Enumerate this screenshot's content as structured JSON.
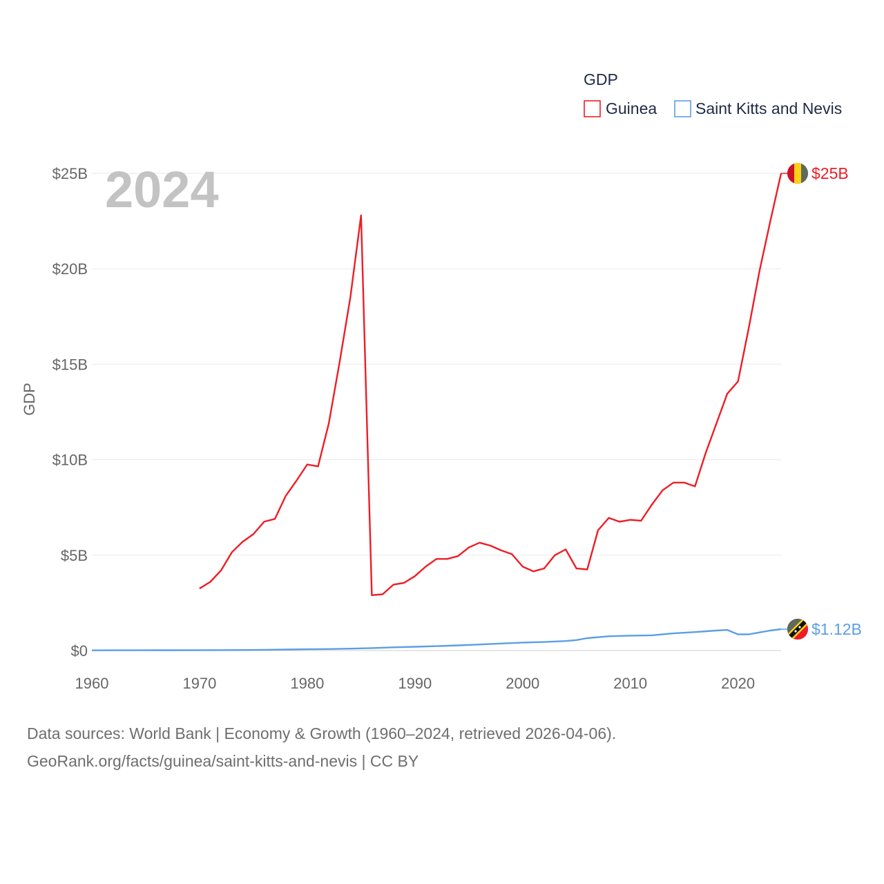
{
  "chart_data": {
    "type": "line",
    "legend_title": "GDP",
    "ylabel": "GDP",
    "xlim": [
      1960,
      2024
    ],
    "ylim": [
      0,
      25
    ],
    "x_ticks": [
      1960,
      1970,
      1980,
      1990,
      2000,
      2010,
      2020
    ],
    "y_ticks": [
      {
        "value": 0,
        "label": "$0"
      },
      {
        "value": 5,
        "label": "$5B"
      },
      {
        "value": 10,
        "label": "$10B"
      },
      {
        "value": 15,
        "label": "$15B"
      },
      {
        "value": 20,
        "label": "$20B"
      },
      {
        "value": 25,
        "label": "$25B"
      }
    ],
    "year_label": "2024",
    "series": [
      {
        "name": "Guinea",
        "color": "#ee1c25",
        "end_label": "$25B",
        "x": [
          1970,
          1971,
          1972,
          1973,
          1974,
          1975,
          1976,
          1977,
          1978,
          1979,
          1980,
          1981,
          1982,
          1983,
          1984,
          1985,
          1986,
          1987,
          1988,
          1989,
          1990,
          1991,
          1992,
          1993,
          1994,
          1995,
          1996,
          1997,
          1998,
          1999,
          2000,
          2001,
          2002,
          2003,
          2004,
          2005,
          2006,
          2007,
          2008,
          2009,
          2010,
          2011,
          2012,
          2013,
          2014,
          2015,
          2016,
          2017,
          2018,
          2019,
          2020,
          2021,
          2022,
          2023,
          2024
        ],
        "values": [
          3.25,
          3.6,
          4.2,
          5.15,
          5.7,
          6.1,
          6.75,
          6.9,
          8.1,
          8.9,
          9.75,
          9.65,
          11.9,
          15.1,
          18.5,
          22.8,
          2.9,
          2.95,
          3.45,
          3.55,
          3.9,
          4.4,
          4.8,
          4.8,
          4.95,
          5.4,
          5.65,
          5.5,
          5.25,
          5.05,
          4.4,
          4.15,
          4.3,
          5.0,
          5.3,
          4.3,
          4.25,
          6.3,
          6.95,
          6.75,
          6.85,
          6.8,
          7.65,
          8.4,
          8.8,
          8.8,
          8.6,
          10.35,
          11.9,
          13.45,
          14.1,
          16.9,
          19.9,
          22.5,
          25.0
        ]
      },
      {
        "name": "Saint Kitts and Nevis",
        "color": "#5b9ee6",
        "end_label": "$1.12B",
        "x": [
          1960,
          1962,
          1964,
          1966,
          1968,
          1970,
          1972,
          1974,
          1976,
          1978,
          1980,
          1982,
          1984,
          1986,
          1988,
          1990,
          1992,
          1994,
          1996,
          1998,
          2000,
          2002,
          2004,
          2005,
          2006,
          2008,
          2010,
          2012,
          2014,
          2016,
          2018,
          2019,
          2020,
          2021,
          2022,
          2023,
          2024
        ],
        "values": [
          0.012,
          0.013,
          0.015,
          0.017,
          0.019,
          0.021,
          0.025,
          0.03,
          0.04,
          0.055,
          0.07,
          0.08,
          0.1,
          0.13,
          0.17,
          0.2,
          0.23,
          0.27,
          0.32,
          0.37,
          0.42,
          0.45,
          0.5,
          0.55,
          0.65,
          0.75,
          0.78,
          0.8,
          0.9,
          0.97,
          1.05,
          1.08,
          0.85,
          0.85,
          0.95,
          1.05,
          1.12
        ]
      }
    ]
  },
  "footer": {
    "line1": "Data sources: World Bank | Economy & Growth (1960–2024, retrieved 2026-04-06).",
    "line2": "GeoRank.org/facts/guinea/saint-kitts-and-nevis | CC BY"
  }
}
